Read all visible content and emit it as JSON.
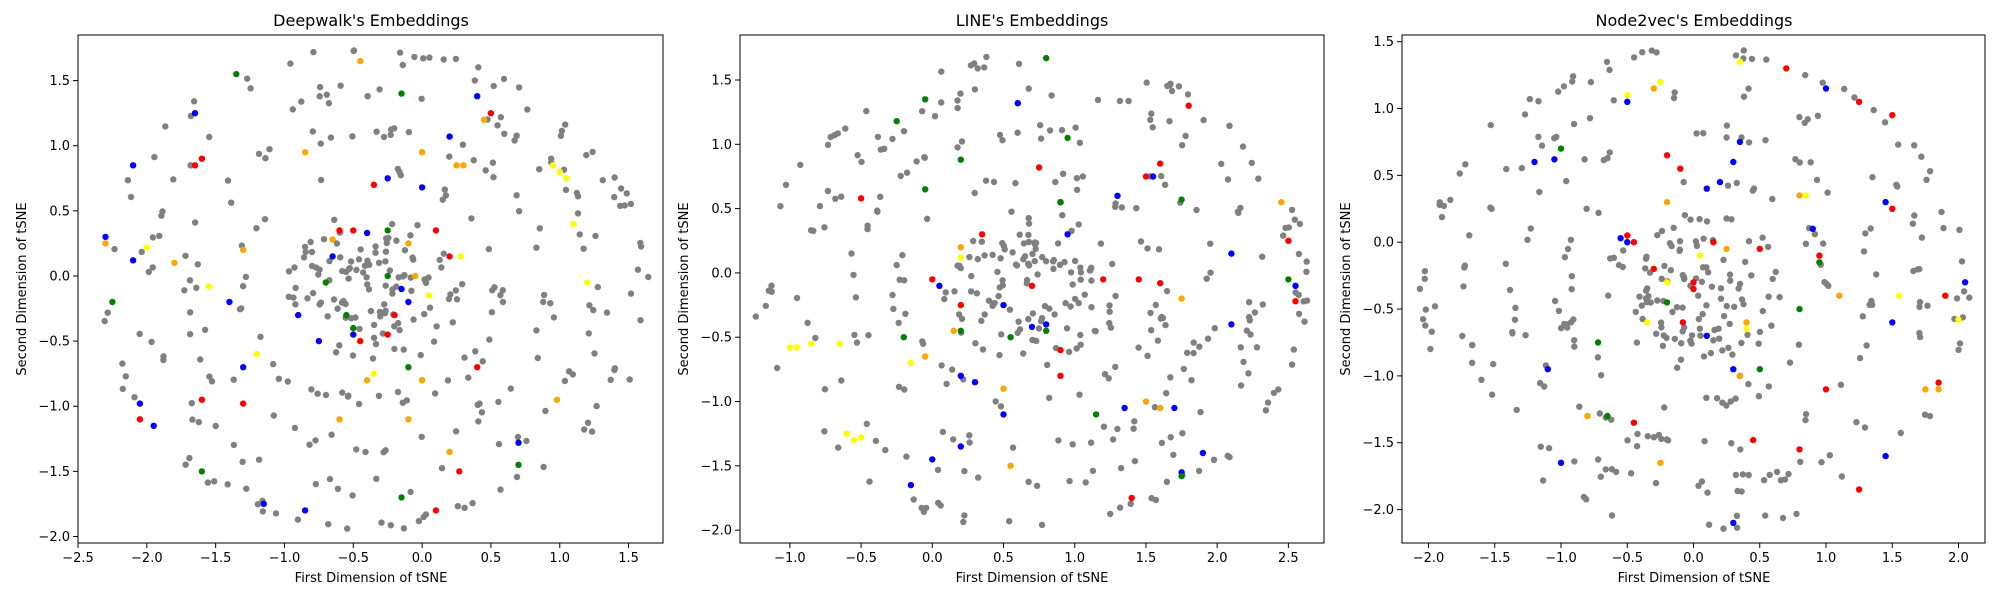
{
  "figure": {
    "background": "#ffffff",
    "point_colors": {
      "gray": "#808080",
      "red": "#ff0000",
      "blue": "#0000ff",
      "green": "#008000",
      "orange": "#ffa500",
      "yellow": "#ffff00"
    }
  },
  "chart_data": [
    {
      "type": "scatter",
      "title": "Deepwalk's Embeddings",
      "xlabel": "First Dimension of tSNE",
      "ylabel": "Second Dimension of tSNE",
      "xlim": [
        -2.5,
        1.75
      ],
      "ylim": [
        -2.05,
        1.85
      ],
      "xticks": [
        -2.5,
        -2.0,
        -1.5,
        -1.0,
        -0.5,
        0.0,
        0.5,
        1.0,
        1.5
      ],
      "yticks": [
        -2.0,
        -1.5,
        -1.0,
        -0.5,
        0.0,
        0.5,
        1.0,
        1.5
      ],
      "grid": false,
      "series": [
        {
          "color": "red",
          "points": [
            [
              -1.6,
              0.9
            ],
            [
              -1.65,
              0.85
            ],
            [
              -0.35,
              0.7
            ],
            [
              -0.6,
              0.35
            ],
            [
              0.1,
              0.35
            ],
            [
              0.2,
              0.15
            ],
            [
              -1.6,
              -0.95
            ],
            [
              -1.3,
              -0.98
            ],
            [
              -2.05,
              -1.1
            ],
            [
              -0.25,
              -0.45
            ],
            [
              0.1,
              -1.8
            ],
            [
              0.4,
              -0.7
            ],
            [
              0.27,
              -1.5
            ],
            [
              0.5,
              1.25
            ],
            [
              -0.5,
              0.35
            ],
            [
              -0.45,
              -0.5
            ],
            [
              -0.2,
              -0.3
            ]
          ]
        },
        {
          "color": "blue",
          "points": [
            [
              -1.65,
              1.25
            ],
            [
              -2.1,
              0.85
            ],
            [
              -2.3,
              0.3
            ],
            [
              -2.1,
              0.12
            ],
            [
              -1.4,
              -0.2
            ],
            [
              -0.9,
              -0.3
            ],
            [
              -0.75,
              -0.5
            ],
            [
              -0.5,
              -0.45
            ],
            [
              -0.15,
              -0.1
            ],
            [
              -0.1,
              -0.2
            ],
            [
              0.0,
              0.68
            ],
            [
              -0.25,
              0.75
            ],
            [
              0.2,
              1.07
            ],
            [
              0.4,
              1.38
            ],
            [
              -0.85,
              -1.8
            ],
            [
              -1.15,
              -1.75
            ],
            [
              -2.05,
              -0.98
            ],
            [
              -1.95,
              -1.15
            ],
            [
              0.7,
              -1.28
            ],
            [
              -1.3,
              -0.7
            ],
            [
              -0.65,
              0.15
            ],
            [
              -0.4,
              0.33
            ]
          ]
        },
        {
          "color": "green",
          "points": [
            [
              -1.35,
              1.55
            ],
            [
              -0.55,
              -0.3
            ],
            [
              -0.15,
              1.4
            ],
            [
              -0.7,
              -0.05
            ],
            [
              -0.25,
              0.35
            ],
            [
              -0.1,
              -0.7
            ],
            [
              0.7,
              -1.45
            ],
            [
              -1.6,
              -1.5
            ],
            [
              -0.15,
              -1.7
            ],
            [
              -0.5,
              -0.4
            ],
            [
              -2.25,
              -0.2
            ],
            [
              -0.25,
              0.0
            ]
          ]
        },
        {
          "color": "orange",
          "points": [
            [
              -0.45,
              1.65
            ],
            [
              0.45,
              1.2
            ],
            [
              0.25,
              0.85
            ],
            [
              0.0,
              0.95
            ],
            [
              -0.65,
              0.28
            ],
            [
              -0.1,
              0.25
            ],
            [
              -0.05,
              0.0
            ],
            [
              0.0,
              -0.8
            ],
            [
              -0.4,
              -0.8
            ],
            [
              -0.6,
              -1.1
            ],
            [
              -0.1,
              -1.1
            ],
            [
              -0.85,
              0.95
            ],
            [
              0.98,
              -0.95
            ],
            [
              0.3,
              0.85
            ],
            [
              -2.3,
              0.25
            ],
            [
              -1.3,
              0.2
            ],
            [
              -1.8,
              0.1
            ],
            [
              0.2,
              -1.35
            ]
          ]
        },
        {
          "color": "yellow",
          "points": [
            [
              0.95,
              0.85
            ],
            [
              1.0,
              0.8
            ],
            [
              1.05,
              0.75
            ],
            [
              1.1,
              0.4
            ],
            [
              0.28,
              0.15
            ],
            [
              -1.2,
              -0.6
            ],
            [
              0.05,
              -0.15
            ],
            [
              -0.35,
              -0.75
            ],
            [
              -2.0,
              0.22
            ],
            [
              -1.55,
              -0.08
            ],
            [
              1.2,
              -0.05
            ]
          ]
        }
      ]
    },
    {
      "type": "scatter",
      "title": "LINE's Embeddings",
      "xlabel": "First Dimension of tSNE",
      "ylabel": "Second Dimension of tSNE",
      "xlim": [
        -1.35,
        2.75
      ],
      "ylim": [
        -2.1,
        1.85
      ],
      "xticks": [
        -1.0,
        -0.5,
        0.0,
        0.5,
        1.0,
        1.5,
        2.0,
        2.5
      ],
      "yticks": [
        -2.0,
        -1.5,
        -1.0,
        -0.5,
        0.0,
        0.5,
        1.0,
        1.5
      ],
      "grid": false,
      "series": [
        {
          "color": "red",
          "points": [
            [
              -0.5,
              0.58
            ],
            [
              0.75,
              0.82
            ],
            [
              1.5,
              0.75
            ],
            [
              1.6,
              0.85
            ],
            [
              1.2,
              -0.05
            ],
            [
              1.45,
              -0.05
            ],
            [
              1.6,
              -0.08
            ],
            [
              0.0,
              -0.05
            ],
            [
              0.7,
              -0.1
            ],
            [
              0.9,
              -0.8
            ],
            [
              0.2,
              -0.25
            ],
            [
              1.4,
              -1.75
            ],
            [
              2.5,
              0.25
            ],
            [
              2.55,
              -0.22
            ],
            [
              0.35,
              0.3
            ],
            [
              1.8,
              1.3
            ],
            [
              0.9,
              -0.6
            ]
          ]
        },
        {
          "color": "blue",
          "points": [
            [
              0.6,
              1.32
            ],
            [
              0.9,
              0.55
            ],
            [
              1.55,
              0.75
            ],
            [
              0.95,
              0.3
            ],
            [
              0.05,
              -0.1
            ],
            [
              0.2,
              -0.8
            ],
            [
              0.3,
              -0.85
            ],
            [
              0.5,
              -1.1
            ],
            [
              0.2,
              -1.35
            ],
            [
              0.0,
              -1.45
            ],
            [
              -0.15,
              -1.65
            ],
            [
              1.35,
              -1.05
            ],
            [
              1.75,
              -1.55
            ],
            [
              1.7,
              -1.05
            ],
            [
              1.9,
              -1.4
            ],
            [
              0.8,
              -0.4
            ],
            [
              0.7,
              -0.42
            ],
            [
              0.5,
              -0.25
            ],
            [
              2.1,
              -0.4
            ],
            [
              2.55,
              -0.1
            ],
            [
              1.3,
              0.6
            ],
            [
              2.1,
              0.15
            ]
          ]
        },
        {
          "color": "green",
          "points": [
            [
              -0.25,
              1.18
            ],
            [
              -0.05,
              1.35
            ],
            [
              0.8,
              1.67
            ],
            [
              0.95,
              1.05
            ],
            [
              0.2,
              0.88
            ],
            [
              -0.05,
              0.65
            ],
            [
              0.2,
              -0.45
            ],
            [
              0.55,
              -0.5
            ],
            [
              0.8,
              -0.45
            ],
            [
              1.15,
              -1.1
            ],
            [
              1.75,
              -1.58
            ],
            [
              1.75,
              0.57
            ],
            [
              2.5,
              -0.05
            ],
            [
              -0.2,
              -0.5
            ],
            [
              0.9,
              0.55
            ]
          ]
        },
        {
          "color": "orange",
          "points": [
            [
              2.45,
              0.55
            ],
            [
              0.2,
              0.2
            ],
            [
              0.5,
              -0.9
            ],
            [
              1.5,
              -1.0
            ],
            [
              1.6,
              -1.05
            ],
            [
              0.55,
              -1.5
            ],
            [
              -0.05,
              -0.65
            ],
            [
              0.15,
              -0.45
            ],
            [
              1.75,
              -0.2
            ]
          ]
        },
        {
          "color": "yellow",
          "points": [
            [
              -0.85,
              -0.55
            ],
            [
              -0.95,
              -0.58
            ],
            [
              -1.0,
              -0.58
            ],
            [
              -0.65,
              -0.55
            ],
            [
              -0.15,
              -0.7
            ],
            [
              -0.6,
              -1.25
            ],
            [
              -0.5,
              -1.28
            ],
            [
              -0.55,
              -1.3
            ],
            [
              0.2,
              0.12
            ]
          ]
        }
      ]
    },
    {
      "type": "scatter",
      "title": "Node2vec's Embeddings",
      "xlabel": "First Dimension of tSNE",
      "ylabel": "Second Dimension of tSNE",
      "xlim": [
        -2.2,
        2.2
      ],
      "ylim": [
        -2.25,
        1.55
      ],
      "xticks": [
        -2.0,
        -1.5,
        -1.0,
        -0.5,
        0.0,
        0.5,
        1.0,
        1.5,
        2.0
      ],
      "yticks": [
        -2.0,
        -1.5,
        -1.0,
        -0.5,
        0.0,
        0.5,
        1.0,
        1.5
      ],
      "grid": false,
      "series": [
        {
          "color": "red",
          "points": [
            [
              -0.5,
              0.05
            ],
            [
              -0.45,
              0.0
            ],
            [
              -0.3,
              -0.2
            ],
            [
              0.0,
              -0.3
            ],
            [
              0.0,
              -0.35
            ],
            [
              0.5,
              -0.05
            ],
            [
              0.7,
              1.3
            ],
            [
              1.25,
              1.05
            ],
            [
              1.5,
              0.95
            ],
            [
              1.5,
              0.25
            ],
            [
              1.0,
              -1.1
            ],
            [
              0.8,
              -1.55
            ],
            [
              1.85,
              -1.05
            ],
            [
              1.9,
              -0.4
            ],
            [
              1.25,
              -1.85
            ],
            [
              -0.2,
              0.65
            ],
            [
              0.45,
              -1.48
            ],
            [
              -0.1,
              0.55
            ],
            [
              -0.45,
              -1.35
            ],
            [
              0.95,
              -0.1
            ],
            [
              -0.08,
              -0.6
            ],
            [
              0.15,
              0.0
            ]
          ]
        },
        {
          "color": "blue",
          "points": [
            [
              -1.05,
              0.62
            ],
            [
              -1.2,
              0.6
            ],
            [
              -1.1,
              -0.95
            ],
            [
              -1.0,
              -1.65
            ],
            [
              -0.5,
              0.0
            ],
            [
              -0.55,
              0.03
            ],
            [
              0.1,
              0.4
            ],
            [
              0.2,
              0.45
            ],
            [
              0.35,
              0.75
            ],
            [
              0.3,
              0.6
            ],
            [
              0.3,
              -0.95
            ],
            [
              0.35,
              -1.0
            ],
            [
              0.9,
              0.1
            ],
            [
              1.0,
              1.15
            ],
            [
              1.45,
              0.3
            ],
            [
              1.5,
              -0.6
            ],
            [
              2.05,
              -0.3
            ],
            [
              1.45,
              -1.6
            ],
            [
              0.1,
              -0.7
            ],
            [
              0.3,
              -2.1
            ],
            [
              -0.5,
              1.05
            ]
          ]
        },
        {
          "color": "green",
          "points": [
            [
              -1.0,
              0.7
            ],
            [
              0.95,
              -0.15
            ],
            [
              -0.65,
              -1.3
            ],
            [
              -0.2,
              -0.45
            ],
            [
              -0.72,
              -0.75
            ],
            [
              0.5,
              -0.95
            ],
            [
              0.8,
              -0.5
            ]
          ]
        },
        {
          "color": "orange",
          "points": [
            [
              0.8,
              0.35
            ],
            [
              -0.2,
              0.3
            ],
            [
              -0.8,
              -1.3
            ],
            [
              -0.25,
              -1.65
            ],
            [
              0.25,
              -0.05
            ],
            [
              0.35,
              -1.0
            ],
            [
              1.1,
              -0.4
            ],
            [
              1.85,
              -1.1
            ],
            [
              1.75,
              -1.1
            ],
            [
              -0.3,
              1.15
            ],
            [
              0.4,
              -0.6
            ]
          ]
        },
        {
          "color": "yellow",
          "points": [
            [
              -0.5,
              1.1
            ],
            [
              -0.25,
              1.2
            ],
            [
              0.35,
              1.35
            ],
            [
              0.85,
              0.35
            ],
            [
              1.55,
              -0.4
            ],
            [
              2.0,
              -0.58
            ],
            [
              0.4,
              -0.65
            ],
            [
              -0.35,
              -0.6
            ],
            [
              0.05,
              -0.1
            ],
            [
              -0.2,
              -0.3
            ]
          ]
        }
      ]
    }
  ]
}
